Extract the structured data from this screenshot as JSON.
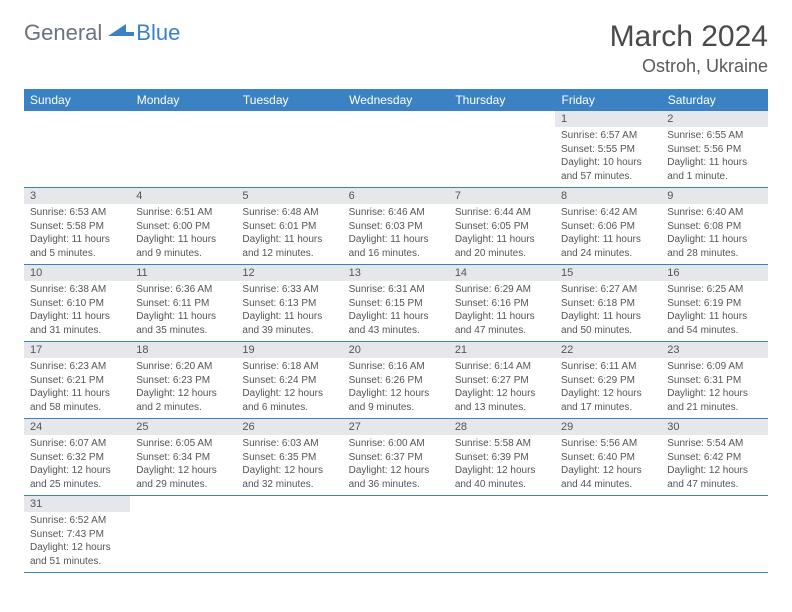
{
  "logo": {
    "general": "General",
    "blue": "Blue"
  },
  "title": "March 2024",
  "location": "Ostroh, Ukraine",
  "colors": {
    "header_bg": "#3b82c4",
    "daynum_bg": "#e5e7eb",
    "text": "#555555",
    "title": "#4a4a4a"
  },
  "day_headers": [
    "Sunday",
    "Monday",
    "Tuesday",
    "Wednesday",
    "Thursday",
    "Friday",
    "Saturday"
  ],
  "weeks": [
    [
      {
        "num": "",
        "sunrise": "",
        "sunset": "",
        "daylight": "",
        "empty": true
      },
      {
        "num": "",
        "sunrise": "",
        "sunset": "",
        "daylight": "",
        "empty": true
      },
      {
        "num": "",
        "sunrise": "",
        "sunset": "",
        "daylight": "",
        "empty": true
      },
      {
        "num": "",
        "sunrise": "",
        "sunset": "",
        "daylight": "",
        "empty": true
      },
      {
        "num": "",
        "sunrise": "",
        "sunset": "",
        "daylight": "",
        "empty": true
      },
      {
        "num": "1",
        "sunrise": "Sunrise: 6:57 AM",
        "sunset": "Sunset: 5:55 PM",
        "daylight": "Daylight: 10 hours and 57 minutes."
      },
      {
        "num": "2",
        "sunrise": "Sunrise: 6:55 AM",
        "sunset": "Sunset: 5:56 PM",
        "daylight": "Daylight: 11 hours and 1 minute."
      }
    ],
    [
      {
        "num": "3",
        "sunrise": "Sunrise: 6:53 AM",
        "sunset": "Sunset: 5:58 PM",
        "daylight": "Daylight: 11 hours and 5 minutes."
      },
      {
        "num": "4",
        "sunrise": "Sunrise: 6:51 AM",
        "sunset": "Sunset: 6:00 PM",
        "daylight": "Daylight: 11 hours and 9 minutes."
      },
      {
        "num": "5",
        "sunrise": "Sunrise: 6:48 AM",
        "sunset": "Sunset: 6:01 PM",
        "daylight": "Daylight: 11 hours and 12 minutes."
      },
      {
        "num": "6",
        "sunrise": "Sunrise: 6:46 AM",
        "sunset": "Sunset: 6:03 PM",
        "daylight": "Daylight: 11 hours and 16 minutes."
      },
      {
        "num": "7",
        "sunrise": "Sunrise: 6:44 AM",
        "sunset": "Sunset: 6:05 PM",
        "daylight": "Daylight: 11 hours and 20 minutes."
      },
      {
        "num": "8",
        "sunrise": "Sunrise: 6:42 AM",
        "sunset": "Sunset: 6:06 PM",
        "daylight": "Daylight: 11 hours and 24 minutes."
      },
      {
        "num": "9",
        "sunrise": "Sunrise: 6:40 AM",
        "sunset": "Sunset: 6:08 PM",
        "daylight": "Daylight: 11 hours and 28 minutes."
      }
    ],
    [
      {
        "num": "10",
        "sunrise": "Sunrise: 6:38 AM",
        "sunset": "Sunset: 6:10 PM",
        "daylight": "Daylight: 11 hours and 31 minutes."
      },
      {
        "num": "11",
        "sunrise": "Sunrise: 6:36 AM",
        "sunset": "Sunset: 6:11 PM",
        "daylight": "Daylight: 11 hours and 35 minutes."
      },
      {
        "num": "12",
        "sunrise": "Sunrise: 6:33 AM",
        "sunset": "Sunset: 6:13 PM",
        "daylight": "Daylight: 11 hours and 39 minutes."
      },
      {
        "num": "13",
        "sunrise": "Sunrise: 6:31 AM",
        "sunset": "Sunset: 6:15 PM",
        "daylight": "Daylight: 11 hours and 43 minutes."
      },
      {
        "num": "14",
        "sunrise": "Sunrise: 6:29 AM",
        "sunset": "Sunset: 6:16 PM",
        "daylight": "Daylight: 11 hours and 47 minutes."
      },
      {
        "num": "15",
        "sunrise": "Sunrise: 6:27 AM",
        "sunset": "Sunset: 6:18 PM",
        "daylight": "Daylight: 11 hours and 50 minutes."
      },
      {
        "num": "16",
        "sunrise": "Sunrise: 6:25 AM",
        "sunset": "Sunset: 6:19 PM",
        "daylight": "Daylight: 11 hours and 54 minutes."
      }
    ],
    [
      {
        "num": "17",
        "sunrise": "Sunrise: 6:23 AM",
        "sunset": "Sunset: 6:21 PM",
        "daylight": "Daylight: 11 hours and 58 minutes."
      },
      {
        "num": "18",
        "sunrise": "Sunrise: 6:20 AM",
        "sunset": "Sunset: 6:23 PM",
        "daylight": "Daylight: 12 hours and 2 minutes."
      },
      {
        "num": "19",
        "sunrise": "Sunrise: 6:18 AM",
        "sunset": "Sunset: 6:24 PM",
        "daylight": "Daylight: 12 hours and 6 minutes."
      },
      {
        "num": "20",
        "sunrise": "Sunrise: 6:16 AM",
        "sunset": "Sunset: 6:26 PM",
        "daylight": "Daylight: 12 hours and 9 minutes."
      },
      {
        "num": "21",
        "sunrise": "Sunrise: 6:14 AM",
        "sunset": "Sunset: 6:27 PM",
        "daylight": "Daylight: 12 hours and 13 minutes."
      },
      {
        "num": "22",
        "sunrise": "Sunrise: 6:11 AM",
        "sunset": "Sunset: 6:29 PM",
        "daylight": "Daylight: 12 hours and 17 minutes."
      },
      {
        "num": "23",
        "sunrise": "Sunrise: 6:09 AM",
        "sunset": "Sunset: 6:31 PM",
        "daylight": "Daylight: 12 hours and 21 minutes."
      }
    ],
    [
      {
        "num": "24",
        "sunrise": "Sunrise: 6:07 AM",
        "sunset": "Sunset: 6:32 PM",
        "daylight": "Daylight: 12 hours and 25 minutes."
      },
      {
        "num": "25",
        "sunrise": "Sunrise: 6:05 AM",
        "sunset": "Sunset: 6:34 PM",
        "daylight": "Daylight: 12 hours and 29 minutes."
      },
      {
        "num": "26",
        "sunrise": "Sunrise: 6:03 AM",
        "sunset": "Sunset: 6:35 PM",
        "daylight": "Daylight: 12 hours and 32 minutes."
      },
      {
        "num": "27",
        "sunrise": "Sunrise: 6:00 AM",
        "sunset": "Sunset: 6:37 PM",
        "daylight": "Daylight: 12 hours and 36 minutes."
      },
      {
        "num": "28",
        "sunrise": "Sunrise: 5:58 AM",
        "sunset": "Sunset: 6:39 PM",
        "daylight": "Daylight: 12 hours and 40 minutes."
      },
      {
        "num": "29",
        "sunrise": "Sunrise: 5:56 AM",
        "sunset": "Sunset: 6:40 PM",
        "daylight": "Daylight: 12 hours and 44 minutes."
      },
      {
        "num": "30",
        "sunrise": "Sunrise: 5:54 AM",
        "sunset": "Sunset: 6:42 PM",
        "daylight": "Daylight: 12 hours and 47 minutes."
      }
    ],
    [
      {
        "num": "31",
        "sunrise": "Sunrise: 6:52 AM",
        "sunset": "Sunset: 7:43 PM",
        "daylight": "Daylight: 12 hours and 51 minutes."
      },
      {
        "num": "",
        "sunrise": "",
        "sunset": "",
        "daylight": "",
        "empty": true
      },
      {
        "num": "",
        "sunrise": "",
        "sunset": "",
        "daylight": "",
        "empty": true
      },
      {
        "num": "",
        "sunrise": "",
        "sunset": "",
        "daylight": "",
        "empty": true
      },
      {
        "num": "",
        "sunrise": "",
        "sunset": "",
        "daylight": "",
        "empty": true
      },
      {
        "num": "",
        "sunrise": "",
        "sunset": "",
        "daylight": "",
        "empty": true
      },
      {
        "num": "",
        "sunrise": "",
        "sunset": "",
        "daylight": "",
        "empty": true
      }
    ]
  ]
}
